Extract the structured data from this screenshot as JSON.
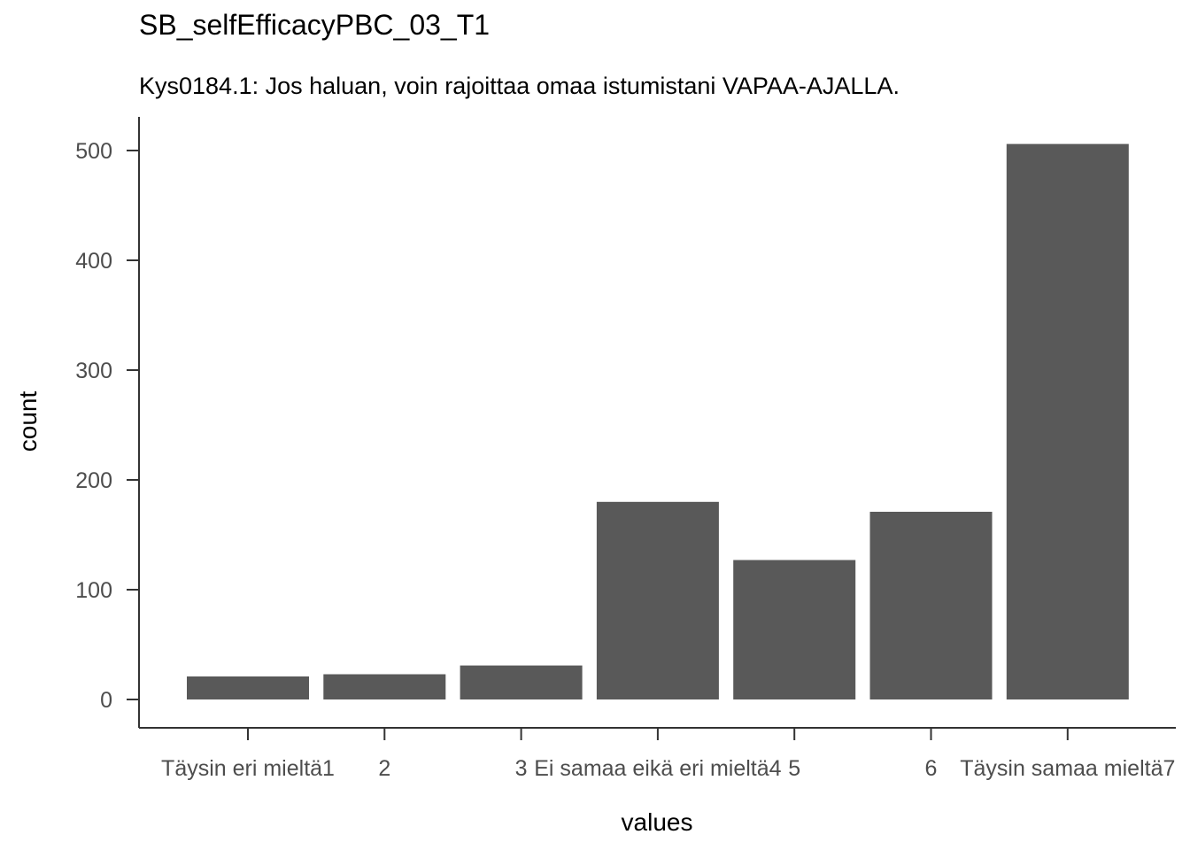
{
  "chart_data": {
    "type": "bar",
    "title": "SB_selfEfficacyPBC_03_T1",
    "subtitle": "Kys0184.1: Jos haluan, voin rajoittaa omaa istumistani VAPAA-AJALLA.",
    "xlabel": "values",
    "ylabel": "count",
    "categories": [
      "Täysin eri mieltä1",
      "2",
      "3",
      "Ei samaa eikä eri mieltä4",
      "5",
      "6",
      "Täysin samaa mieltä7"
    ],
    "values": [
      21,
      23,
      31,
      180,
      127,
      171,
      506
    ],
    "y_ticks": [
      0,
      100,
      200,
      300,
      400,
      500
    ],
    "ylim": [
      0,
      530
    ],
    "grid": false,
    "bar_color": "#595959",
    "axis_color": "#333333"
  }
}
